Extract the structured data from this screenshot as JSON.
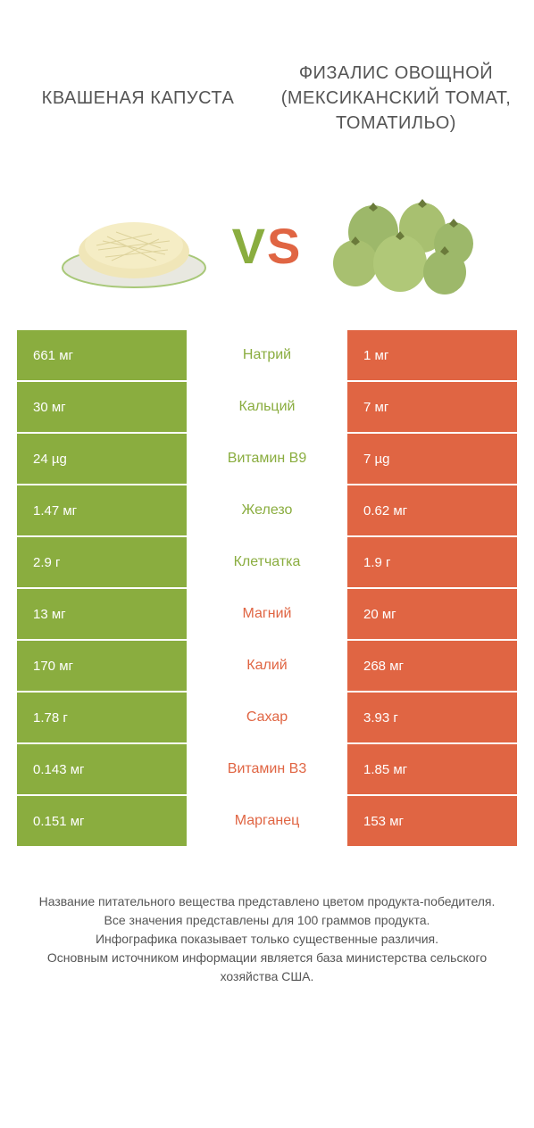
{
  "colors": {
    "green": "#8aad3f",
    "orange": "#e06543",
    "text": "#555555",
    "white": "#ffffff"
  },
  "food_left": {
    "title": "Квашеная капуста"
  },
  "food_right": {
    "title": "Физалис овощной (Мексиканский томат, Томатильо)"
  },
  "vs_label": "VS",
  "comparison": {
    "rows": [
      {
        "left": "661 мг",
        "nutrient": "Натрий",
        "right": "1 мг",
        "winner": "left"
      },
      {
        "left": "30 мг",
        "nutrient": "Кальций",
        "right": "7 мг",
        "winner": "left"
      },
      {
        "left": "24 µg",
        "nutrient": "Витамин B9",
        "right": "7 µg",
        "winner": "left"
      },
      {
        "left": "1.47 мг",
        "nutrient": "Железо",
        "right": "0.62 мг",
        "winner": "left"
      },
      {
        "left": "2.9 г",
        "nutrient": "Клетчатка",
        "right": "1.9 г",
        "winner": "left"
      },
      {
        "left": "13 мг",
        "nutrient": "Магний",
        "right": "20 мг",
        "winner": "right"
      },
      {
        "left": "170 мг",
        "nutrient": "Калий",
        "right": "268 мг",
        "winner": "right"
      },
      {
        "left": "1.78 г",
        "nutrient": "Сахар",
        "right": "3.93 г",
        "winner": "right"
      },
      {
        "left": "0.143 мг",
        "nutrient": "Витамин B3",
        "right": "1.85 мг",
        "winner": "right"
      },
      {
        "left": "0.151 мг",
        "nutrient": "Марганец",
        "right": "153 мг",
        "winner": "right"
      }
    ]
  },
  "footer": {
    "line1": "Название питательного вещества представлено цветом продукта-победителя.",
    "line2": "Все значения представлены для 100 граммов продукта.",
    "line3": "Инфографика показывает только существенные различия.",
    "line4": "Основным источником информации является база министерства сельского хозяйства США."
  }
}
